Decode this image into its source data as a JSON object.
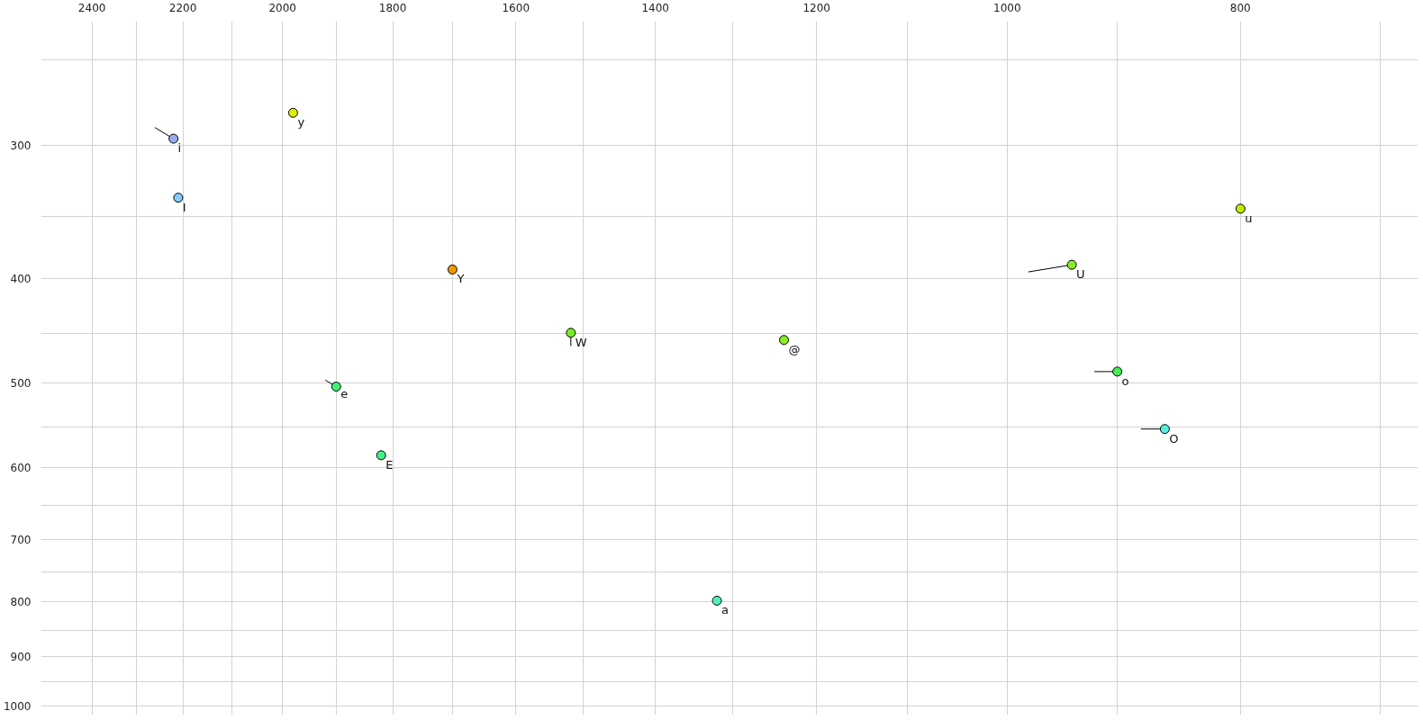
{
  "chart_data": {
    "type": "scatter",
    "log": "xy",
    "marker": "circle",
    "grid": true,
    "xlim": [
      2520,
      675
    ],
    "ylim": [
      1020,
      230
    ],
    "xticks": [
      2400,
      {
        "value": 2300,
        "label": null
      },
      2200,
      {
        "value": 2100,
        "label": null
      },
      2000,
      {
        "value": 1900,
        "label": null
      },
      1800,
      {
        "value": 1700,
        "label": null
      },
      1600,
      {
        "value": 1500,
        "label": null
      },
      1400,
      {
        "value": 1300,
        "label": null
      },
      1200,
      {
        "value": 1100,
        "label": null
      },
      1000,
      {
        "value": 900,
        "label": null
      },
      800,
      {
        "value": 700,
        "label": null
      }
    ],
    "yticks": [
      {
        "value": 250,
        "label": null
      },
      300,
      {
        "value": 350,
        "label": null
      },
      400,
      {
        "value": 450,
        "label": null
      },
      500,
      {
        "value": 550,
        "label": null
      },
      600,
      {
        "value": 650,
        "label": null
      },
      700,
      {
        "value": 750,
        "label": null
      },
      800,
      {
        "value": 850,
        "label": null
      },
      900,
      {
        "value": 950,
        "label": null
      },
      1000
    ],
    "series": [
      {
        "type": "line",
        "marker": "none",
        "color": "#000000",
        "x": [
          2260,
          2220
        ],
        "values": [
          289,
          296
        ]
      },
      {
        "type": "line",
        "marker": "none",
        "color": "#000000",
        "x": [
          1920,
          1900
        ],
        "values": [
          497,
          504
        ]
      },
      {
        "type": "line",
        "marker": "none",
        "color": "#000000",
        "x": [
          1518,
          1518
        ],
        "values": [
          449,
          462
        ]
      },
      {
        "type": "line",
        "marker": "none",
        "color": "#000000",
        "x": [
          980,
          940
        ],
        "values": [
          394,
          388
        ]
      },
      {
        "type": "line",
        "marker": "none",
        "color": "#000000",
        "x": [
          920,
          900
        ],
        "values": [
          488,
          488
        ]
      },
      {
        "type": "line",
        "marker": "none",
        "color": "#000000",
        "x": [
          880,
          860
        ],
        "values": [
          552,
          552
        ]
      },
      {
        "x": [
          2220,
          2210,
          1980,
          1700,
          1518,
          1238,
          1900,
          1820,
          1320,
          800,
          940,
          900,
          860
        ],
        "values": [
          296,
          336,
          280,
          392,
          449,
          456,
          504,
          584,
          798,
          344,
          388,
          488,
          552
        ],
        "colors": [
          "#99aaf0",
          "#88ccff",
          "#ddee00",
          "#ee9900",
          "#77ee22",
          "#88ee22",
          "#44ee77",
          "#44ee88",
          "#55eebb",
          "#bbee00",
          "#88ee22",
          "#44ee55",
          "#55eedd"
        ]
      }
    ],
    "annotations": [
      {
        "text": "i",
        "x": 2220,
        "y": 296
      },
      {
        "text": "I",
        "x": 2210,
        "y": 336
      },
      {
        "text": "y",
        "x": 1980,
        "y": 280
      },
      {
        "text": "Y",
        "x": 1700,
        "y": 392
      },
      {
        "text": "W",
        "x": 1518,
        "y": 449
      },
      {
        "text": "@",
        "x": 1238,
        "y": 456
      },
      {
        "text": "e",
        "x": 1900,
        "y": 504
      },
      {
        "text": "E",
        "x": 1820,
        "y": 584
      },
      {
        "text": "a",
        "x": 1320,
        "y": 798
      },
      {
        "text": "u",
        "x": 800,
        "y": 344
      },
      {
        "text": "U",
        "x": 940,
        "y": 388
      },
      {
        "text": "o",
        "x": 900,
        "y": 488
      },
      {
        "text": "O",
        "x": 860,
        "y": 552
      }
    ]
  }
}
